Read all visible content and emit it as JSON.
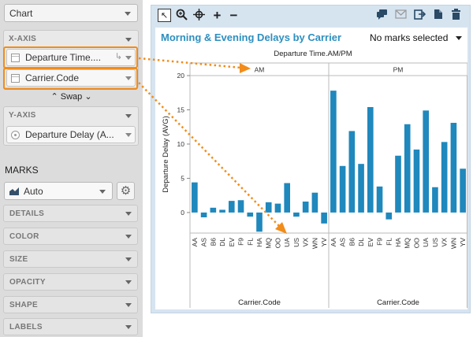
{
  "left_panel": {
    "chart_type": "Chart",
    "x_axis": {
      "title": "X-AXIS",
      "fields": [
        "Departure Time....",
        "Carrier.Code"
      ],
      "swap_label": "Swap"
    },
    "y_axis": {
      "title": "Y-AXIS",
      "field": "Departure Delay (A..."
    },
    "marks": {
      "title": "MARKS",
      "type": "Auto",
      "rows": [
        "DETAILS",
        "COLOR",
        "SIZE",
        "OPACITY",
        "SHAPE",
        "LABELS"
      ]
    }
  },
  "toolbar": {
    "icons": [
      "select-arrow-icon",
      "zoom-icon",
      "pan-icon",
      "plus-icon",
      "minus-icon",
      "comment-icon",
      "mail-icon",
      "export-icon",
      "copy-icon",
      "trash-icon"
    ]
  },
  "colors": {
    "bar": "#1f88bd",
    "title": "#2d8fc0",
    "highlight": "#f28c1a",
    "panel_bg": "#d6e4f0"
  },
  "chart_data": {
    "type": "bar",
    "title": "Morning & Evening Delays by Carrier",
    "status": "No marks selected",
    "facet_label": "Departure Time.AM/PM",
    "ylabel": "Departure Delay (AVG)",
    "xlabel": "Carrier.Code",
    "ylim": [
      -3,
      20
    ],
    "yticks": [
      0,
      5,
      10,
      15,
      20
    ],
    "categories": [
      "AA",
      "AS",
      "B6",
      "DL",
      "EV",
      "F9",
      "FL",
      "HA",
      "MQ",
      "OO",
      "UA",
      "US",
      "VX",
      "WN",
      "YV"
    ],
    "series": [
      {
        "name": "AM",
        "values": [
          4.4,
          -0.7,
          0.7,
          0.4,
          1.7,
          1.8,
          -0.6,
          -2.8,
          1.5,
          1.3,
          4.3,
          -0.6,
          1.6,
          2.9,
          -1.6
        ]
      },
      {
        "name": "PM",
        "values": [
          17.8,
          6.8,
          11.9,
          7.1,
          15.4,
          3.8,
          -1.0,
          8.3,
          12.9,
          9.2,
          14.9,
          3.7,
          10.3,
          13.1,
          6.4
        ]
      }
    ]
  }
}
